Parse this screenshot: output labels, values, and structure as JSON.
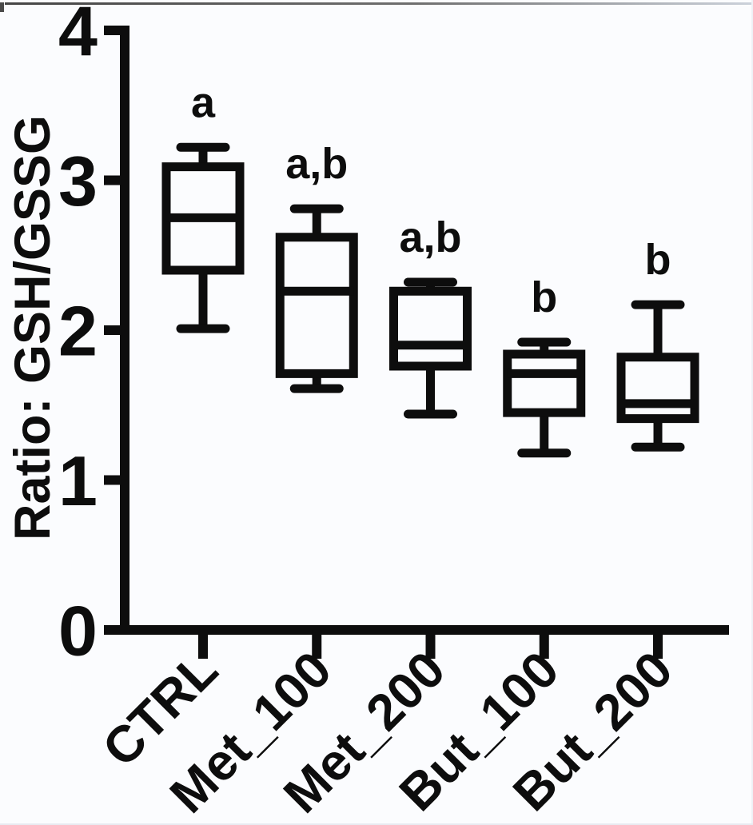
{
  "figure": {
    "background": "#fbfcfe",
    "ink": "#0d0d0d"
  },
  "chart_data": {
    "type": "boxplot",
    "title": "",
    "xlabel": "",
    "ylabel": "Ratio: GSH/GSSG",
    "ylim": [
      0,
      4
    ],
    "yticks": [
      0,
      1,
      2,
      3,
      4
    ],
    "grid": false,
    "legend": null,
    "categories": [
      "CTRL",
      "Met_100",
      "Met_200",
      "But_100",
      "But_200"
    ],
    "series": [
      {
        "category": "CTRL",
        "min": 2.01,
        "q1": 2.4,
        "median": 2.75,
        "q3": 3.09,
        "max": 3.22,
        "annotation": "a"
      },
      {
        "category": "Met_100",
        "min": 1.61,
        "q1": 1.71,
        "median": 2.26,
        "q3": 2.62,
        "max": 2.81,
        "annotation": "a,b"
      },
      {
        "category": "Met_200",
        "min": 1.44,
        "q1": 1.76,
        "median": 1.9,
        "q3": 2.26,
        "max": 2.32,
        "annotation": "a,b"
      },
      {
        "category": "But_100",
        "min": 1.18,
        "q1": 1.45,
        "median": 1.71,
        "q3": 1.84,
        "max": 1.92,
        "annotation": "b"
      },
      {
        "category": "But_200",
        "min": 1.22,
        "q1": 1.41,
        "median": 1.51,
        "q3": 1.82,
        "max": 2.17,
        "annotation": "b"
      }
    ]
  }
}
